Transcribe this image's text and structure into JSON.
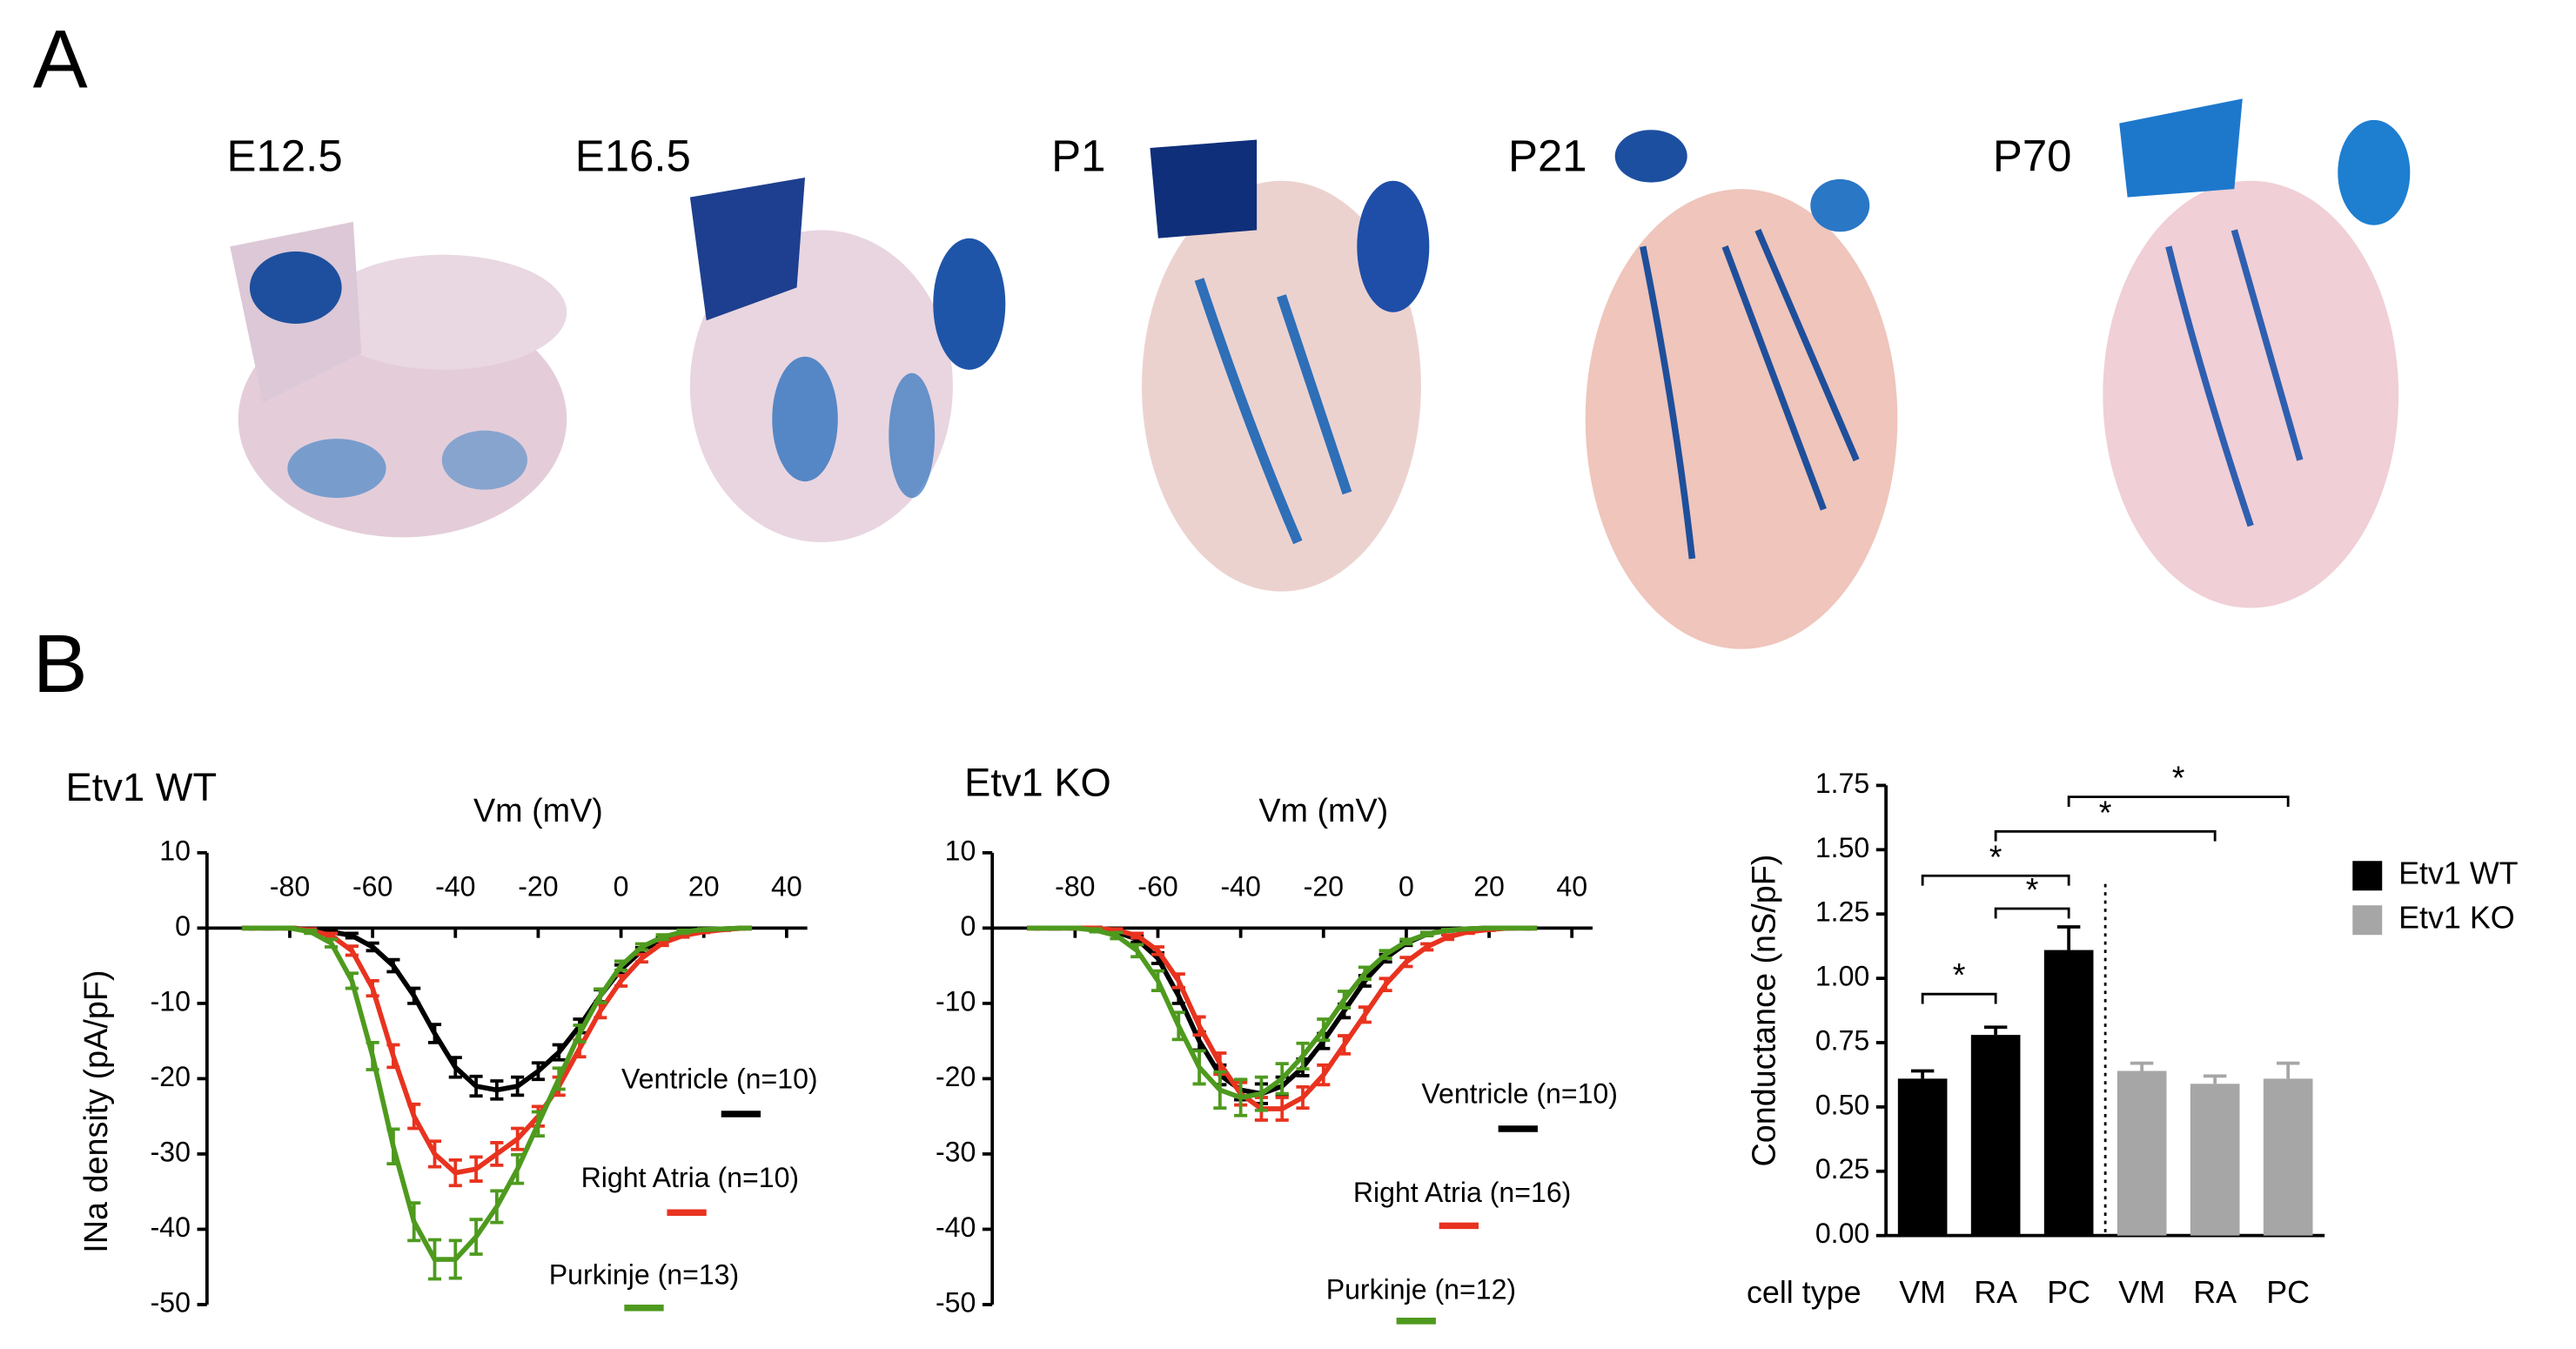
{
  "panel_a": {
    "label": "A",
    "stages": [
      "E12.5",
      "E16.5",
      "P1",
      "P21",
      "P70"
    ]
  },
  "panel_b": {
    "label": "B"
  },
  "chart_data": [
    {
      "type": "line",
      "title": "Etv1 WT",
      "xlabel": "Vm (mV)",
      "ylabel": "INa density (pA/pF)",
      "x": [
        -90,
        -85,
        -80,
        -75,
        -70,
        -65,
        -60,
        -55,
        -50,
        -45,
        -40,
        -35,
        -30,
        -25,
        -20,
        -15,
        -10,
        -5,
        0,
        5,
        10,
        15,
        20,
        25,
        30
      ],
      "xlim": [
        -100,
        45
      ],
      "ylim": [
        -50,
        10
      ],
      "xticks": [
        -80,
        -60,
        -40,
        -20,
        0,
        20,
        40
      ],
      "yticks": [
        10,
        0,
        -10,
        -20,
        -30,
        -40,
        -50
      ],
      "series": [
        {
          "name": "Ventricle (n=10)",
          "color": "#000000",
          "values": [
            0,
            0,
            0,
            -0.2,
            -0.5,
            -1,
            -2.5,
            -5,
            -9,
            -14,
            -18.5,
            -21,
            -21.5,
            -21,
            -19,
            -16.5,
            -13,
            -9,
            -5.5,
            -3,
            -1.5,
            -0.7,
            -0.3,
            -0.1,
            0
          ],
          "errors": [
            0.1,
            0.1,
            0.1,
            0.1,
            0.2,
            0.3,
            0.5,
            0.8,
            1,
            1.2,
            1.3,
            1.3,
            1.2,
            1.2,
            1.1,
            1,
            0.9,
            0.8,
            0.6,
            0.4,
            0.3,
            0.2,
            0.1,
            0.1,
            0.1
          ]
        },
        {
          "name": "Right Atria (n=10)",
          "color": "#e8331f",
          "values": [
            0,
            0,
            0,
            -0.3,
            -1,
            -3,
            -8,
            -17,
            -25,
            -30,
            -32.5,
            -32,
            -30,
            -28,
            -25,
            -21,
            -16,
            -11,
            -7,
            -4,
            -2,
            -1,
            -0.5,
            -0.2,
            0
          ],
          "errors": [
            0.1,
            0.1,
            0.1,
            0.2,
            0.3,
            0.6,
            1,
            1.5,
            1.6,
            1.7,
            1.7,
            1.6,
            1.5,
            1.4,
            1.3,
            1.2,
            1.1,
            0.9,
            0.7,
            0.5,
            0.3,
            0.2,
            0.1,
            0.1,
            0.1
          ]
        },
        {
          "name": "Purkinje (n=13)",
          "color": "#4e9a1e",
          "values": [
            0,
            0,
            0,
            -0.5,
            -2,
            -7,
            -17,
            -29,
            -39,
            -44,
            -44,
            -41,
            -37,
            -32,
            -26,
            -20,
            -14,
            -9,
            -5,
            -2.5,
            -1.2,
            -0.5,
            -0.2,
            -0.1,
            0
          ],
          "errors": [
            0.1,
            0.1,
            0.1,
            0.2,
            0.5,
            1,
            1.8,
            2.3,
            2.5,
            2.6,
            2.5,
            2.3,
            2.1,
            1.9,
            1.6,
            1.4,
            1.1,
            0.9,
            0.6,
            0.4,
            0.3,
            0.2,
            0.1,
            0.1,
            0.1
          ]
        }
      ]
    },
    {
      "type": "line",
      "title": "Etv1 KO",
      "xlabel": "Vm (mV)",
      "x": [
        -90,
        -85,
        -80,
        -75,
        -70,
        -65,
        -60,
        -55,
        -50,
        -45,
        -40,
        -35,
        -30,
        -25,
        -20,
        -15,
        -10,
        -5,
        0,
        5,
        10,
        15,
        20,
        25,
        30
      ],
      "xlim": [
        -100,
        45
      ],
      "ylim": [
        -50,
        10
      ],
      "xticks": [
        -80,
        -60,
        -40,
        -20,
        0,
        20,
        40
      ],
      "yticks": [
        10,
        0,
        -10,
        -20,
        -30,
        -40,
        -50
      ],
      "series": [
        {
          "name": "Ventricle (n=10)",
          "color": "#000000",
          "values": [
            0,
            0,
            0,
            0,
            -0.5,
            -1.5,
            -4,
            -9,
            -15,
            -19.5,
            -21.5,
            -22,
            -21,
            -18.5,
            -15,
            -11,
            -7,
            -4,
            -2,
            -0.8,
            -0.3,
            -0.1,
            0,
            0,
            0
          ],
          "errors": [
            0.1,
            0.1,
            0.1,
            0.1,
            0.2,
            0.4,
            0.7,
            1,
            1.2,
            1.3,
            1.3,
            1.3,
            1.2,
            1.1,
            1,
            0.9,
            0.7,
            0.5,
            0.3,
            0.2,
            0.1,
            0.1,
            0.1,
            0.1,
            0.1
          ]
        },
        {
          "name": "Right Atria (n=16)",
          "color": "#e8331f",
          "values": [
            0,
            0,
            0,
            0,
            -0.3,
            -1,
            -3,
            -7,
            -13,
            -18,
            -22,
            -24,
            -24,
            -22.5,
            -19.5,
            -15.5,
            -11.5,
            -7.5,
            -4.5,
            -2.5,
            -1.2,
            -0.5,
            -0.2,
            0,
            0
          ],
          "errors": [
            0.1,
            0.1,
            0.1,
            0.1,
            0.2,
            0.3,
            0.5,
            0.9,
            1.2,
            1.4,
            1.5,
            1.5,
            1.5,
            1.4,
            1.3,
            1.2,
            1,
            0.8,
            0.6,
            0.4,
            0.3,
            0.2,
            0.1,
            0.1,
            0.1
          ]
        },
        {
          "name": "Purkinje (n=12)",
          "color": "#4e9a1e",
          "values": [
            0,
            0,
            0,
            -0.3,
            -1,
            -3,
            -7,
            -13,
            -18.5,
            -21.5,
            -22.5,
            -22,
            -20,
            -17,
            -13.5,
            -9.5,
            -6,
            -3.5,
            -1.8,
            -0.8,
            -0.3,
            -0.1,
            0,
            0,
            0
          ],
          "errors": [
            0.1,
            0.1,
            0.1,
            0.2,
            0.4,
            0.8,
            1.3,
            1.8,
            2.2,
            2.4,
            2.4,
            2.2,
            2,
            1.7,
            1.4,
            1.1,
            0.8,
            0.5,
            0.3,
            0.2,
            0.1,
            0.1,
            0.1,
            0.1,
            0.1
          ]
        }
      ]
    },
    {
      "type": "bar",
      "ylabel": "Conductance (nS/pF)",
      "xlabel": "cell type",
      "categories": [
        "VM",
        "RA",
        "PC",
        "VM",
        "RA",
        "PC"
      ],
      "ylim": [
        0,
        1.75
      ],
      "yticks": [
        {
          "value": 0,
          "label": "0.00"
        },
        {
          "value": 0.25,
          "label": "0.25"
        },
        {
          "value": 0.5,
          "label": "0.50"
        },
        {
          "value": 0.75,
          "label": "0.75"
        },
        {
          "value": 1,
          "label": "1.00"
        },
        {
          "value": 1.25,
          "label": "1.25"
        },
        {
          "value": 1.5,
          "label": "1.50"
        },
        {
          "value": 1.75,
          "label": "1.75"
        }
      ],
      "series": [
        {
          "name": "Etv1 WT",
          "color": "#000000",
          "values": [
            0.61,
            0.78,
            1.11,
            null,
            null,
            null
          ],
          "errors": [
            0.03,
            0.03,
            0.09,
            null,
            null,
            null
          ]
        },
        {
          "name": "Etv1 KO",
          "color": "#a6a6a6",
          "values": [
            null,
            null,
            null,
            0.64,
            0.59,
            0.61
          ],
          "errors": [
            null,
            null,
            null,
            0.03,
            0.03,
            0.06
          ]
        }
      ],
      "annotations": [
        "*",
        "*",
        "*",
        "*",
        "*"
      ]
    }
  ]
}
